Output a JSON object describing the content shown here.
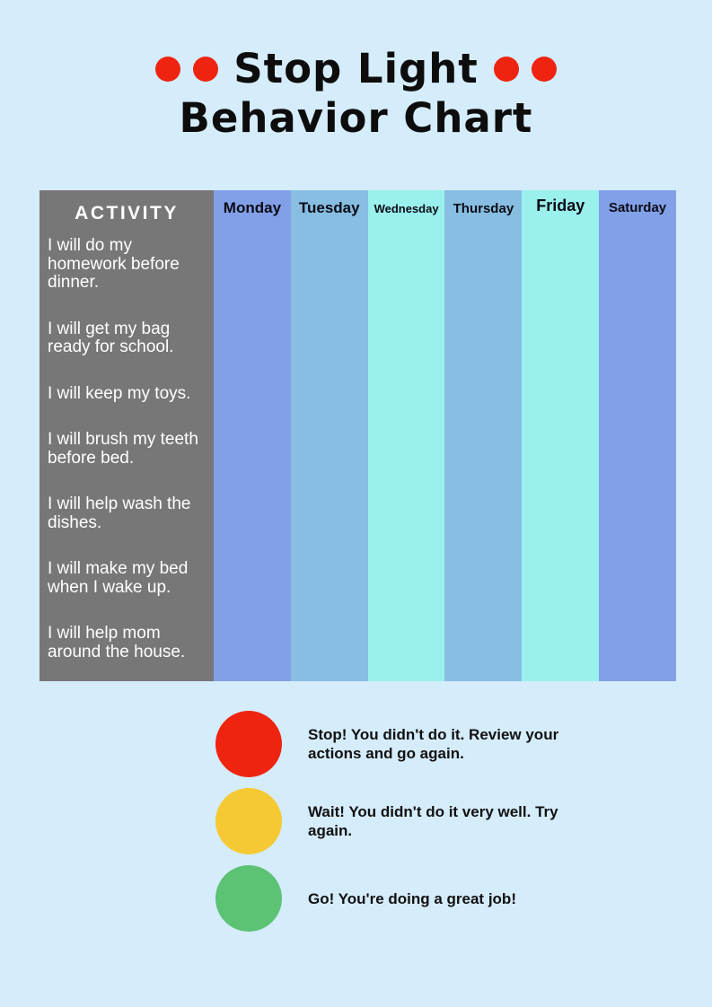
{
  "page": {
    "background": "#d5ecfb"
  },
  "title": {
    "line1": "Stop Light",
    "line2": "Behavior Chart",
    "dot_color": "#ee2410",
    "text_color": "#0d0d0d"
  },
  "table": {
    "activity_header": "ACTIVITY",
    "activity_bg": "#777777",
    "activity_text_color": "#ffffff",
    "activities": [
      "I will do my homework before dinner.",
      "I will get my bag ready for school.",
      "I will keep my toys.",
      "I will brush my teeth before bed.",
      "I will help wash the dishes.",
      "I will make my bed when I wake up.",
      "I will help mom around the house."
    ],
    "days": [
      {
        "label": "Monday",
        "color": "#82a0e7"
      },
      {
        "label": "Tuesday",
        "color": "#87bee2"
      },
      {
        "label": "Wednesday",
        "color": "#9af0ec"
      },
      {
        "label": "Thursday",
        "color": "#87bee2"
      },
      {
        "label": "Friday",
        "color": "#9af0ec"
      },
      {
        "label": "Saturday",
        "color": "#82a0e7"
      }
    ]
  },
  "legend": {
    "items": [
      {
        "name": "stop",
        "color": "#ee2410",
        "text": "Stop! You didn't do it. Review your actions and go again."
      },
      {
        "name": "wait",
        "color": "#f6c934",
        "text": "Wait! You didn't do it very well. Try again."
      },
      {
        "name": "go",
        "color": "#5cc274",
        "text": "Go! You're doing a great job!"
      }
    ]
  }
}
